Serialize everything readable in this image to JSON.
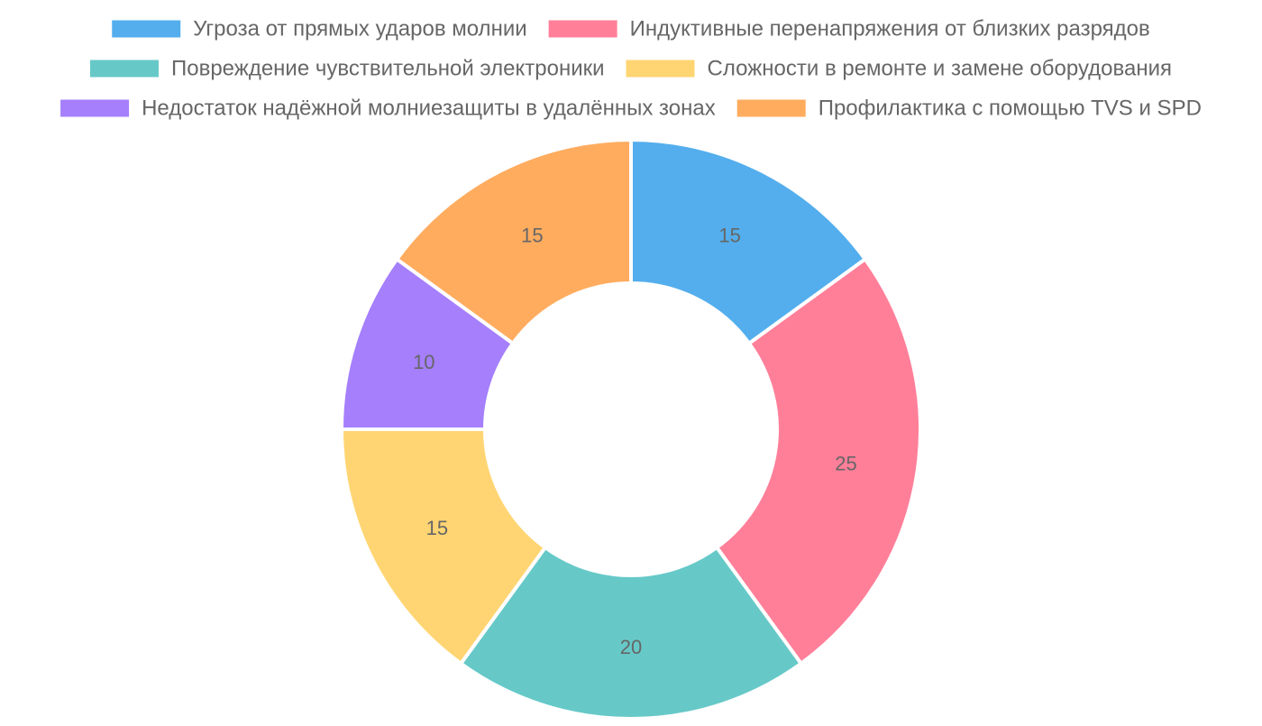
{
  "chart_data": {
    "type": "pie",
    "variant": "doughnut",
    "title": "",
    "legend_position": "top",
    "categories": [
      "Угроза от прямых ударов молнии",
      "Индуктивные перенапряжения от близких разрядов",
      "Повреждение чувствительной электроники",
      "Сложности в ремонте и замене оборудования",
      "Недостаток надёжной молниезащиты в удалённых зонах",
      "Профилактика с помощью TVS и SPD"
    ],
    "values": [
      15,
      25,
      20,
      15,
      10,
      15
    ],
    "colors": [
      "#54aeed",
      "#ff7f99",
      "#66c9c8",
      "#ffd573",
      "#a57ffc",
      "#ffac5f"
    ]
  }
}
